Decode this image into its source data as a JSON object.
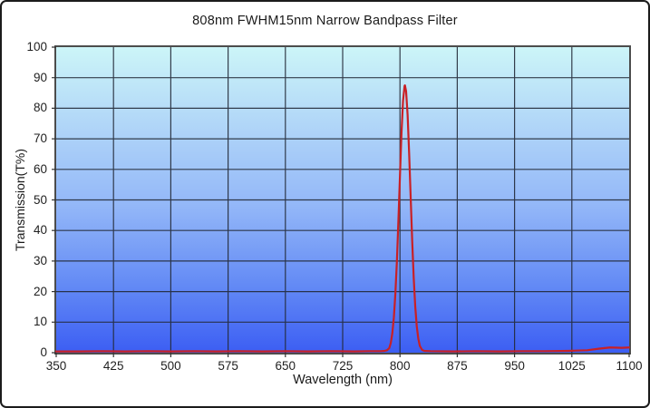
{
  "page": {
    "background_color": "#ffffff",
    "outer_border_color": "#1b1b1b"
  },
  "chart_data": {
    "type": "line",
    "title": "808nm FWHM15nm Narrow Bandpass Filter",
    "xlabel": "Wavelength (nm)",
    "ylabel": "Transmission(T%)",
    "xlim": [
      350,
      1100
    ],
    "ylim": [
      0,
      100
    ],
    "xticks": [
      350,
      425,
      500,
      575,
      650,
      725,
      800,
      875,
      950,
      1025,
      1100
    ],
    "yticks": [
      0,
      10,
      20,
      30,
      40,
      50,
      60,
      70,
      80,
      90,
      100
    ],
    "grid": true,
    "legend": false,
    "plot_background_gradient": {
      "top": "#ccf5f8",
      "middle": "#93b7f8",
      "bottom": "#3c5ef3"
    },
    "gridline_color": "#232a38",
    "frame_color": "#4c4c4c",
    "peak": {
      "center_nm": 808,
      "max_transmission_percent": 87.5,
      "fwhm_nm": 15
    },
    "series": [
      {
        "name": "transmission",
        "color": "#c92025",
        "line_width": 2.2,
        "points": [
          [
            350,
            0.4
          ],
          [
            380,
            0.4
          ],
          [
            410,
            0.5
          ],
          [
            440,
            0.4
          ],
          [
            470,
            0.5
          ],
          [
            500,
            0.4
          ],
          [
            530,
            0.5
          ],
          [
            560,
            0.4
          ],
          [
            590,
            0.5
          ],
          [
            620,
            0.4
          ],
          [
            650,
            0.5
          ],
          [
            680,
            0.4
          ],
          [
            710,
            0.5
          ],
          [
            740,
            0.4
          ],
          [
            760,
            0.5
          ],
          [
            775,
            0.5
          ],
          [
            780,
            0.6
          ],
          [
            783,
            0.8
          ],
          [
            786,
            1.5
          ],
          [
            788,
            3.2
          ],
          [
            790,
            6.4
          ],
          [
            792,
            11.5
          ],
          [
            794,
            19.4
          ],
          [
            796,
            30
          ],
          [
            798,
            43.6
          ],
          [
            800,
            58
          ],
          [
            802,
            72
          ],
          [
            804,
            82.4
          ],
          [
            806,
            87.3
          ],
          [
            806.5,
            87.5
          ],
          [
            808,
            85.6
          ],
          [
            810,
            77.8
          ],
          [
            812,
            65.3
          ],
          [
            814,
            50.9
          ],
          [
            816,
            36.6
          ],
          [
            818,
            24.4
          ],
          [
            820,
            15.1
          ],
          [
            822,
            8.6
          ],
          [
            824,
            4.6
          ],
          [
            826,
            2.2
          ],
          [
            829,
            0.9
          ],
          [
            832,
            0.6
          ],
          [
            840,
            0.5
          ],
          [
            870,
            0.4
          ],
          [
            900,
            0.5
          ],
          [
            930,
            0.4
          ],
          [
            960,
            0.5
          ],
          [
            990,
            0.5
          ],
          [
            1020,
            0.6
          ],
          [
            1045,
            0.8
          ],
          [
            1060,
            1.3
          ],
          [
            1075,
            1.7
          ],
          [
            1090,
            1.6
          ],
          [
            1100,
            1.7
          ]
        ]
      }
    ]
  }
}
